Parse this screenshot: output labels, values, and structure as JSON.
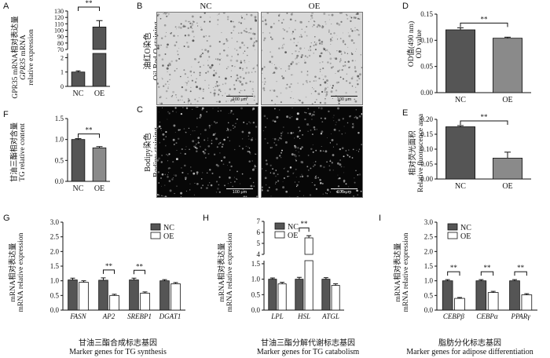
{
  "panels": {
    "A": {
      "label": "A",
      "ylabel_cn": "GPR35 mRNA相对表达量",
      "ylabel_en_gene": "GPR35",
      "ylabel_en_rest": " mRNA",
      "ylabel_en2": "relative expression"
    },
    "B": {
      "label": "B",
      "col_nc": "NC",
      "col_oe": "OE",
      "side_cn": "油红O染色",
      "side_en": "Oil Red O staining",
      "scale": "100 μm"
    },
    "C": {
      "label": "C",
      "side_cn": "Bodipy染色",
      "side_en": "Bodipy staining",
      "scale": "100 μm"
    },
    "D": {
      "label": "D",
      "ylabel_cn": "OD值(490 nm)",
      "ylabel_en": "OD value"
    },
    "E": {
      "label": "E",
      "ylabel_cn": "相对荧光面积",
      "ylabel_en": "Relative fluorescence area"
    },
    "F": {
      "label": "F",
      "ylabel_cn": "甘油三酯相对含量",
      "ylabel_en": "TG relative content"
    },
    "G": {
      "label": "G",
      "ylabel_cn": "mRNA相对表达量",
      "ylabel_en": "mRNA relative expression",
      "cap_cn": "甘油三酯合成标志基因",
      "cap_en": "Marker genes for TG synthesis"
    },
    "H": {
      "label": "H",
      "ylabel_cn": "mRNA相对表达量",
      "ylabel_en": "mRNA relative expression",
      "cap_cn": "甘油三酯分解代谢标志基因",
      "cap_en": "Marker genes for  TG catabolism"
    },
    "I": {
      "label": "I",
      "ylabel_cn": "mRNA相对表达量",
      "ylabel_en": "mRNA relative expression",
      "cap_cn": "脂肪分化标志基因",
      "cap_en": "Marker genes for adipose differentiation"
    }
  },
  "colors": {
    "nc": "#555555",
    "oe_dark": "#8a8a8a",
    "oe_white": "#ffffff"
  },
  "chart_data": [
    {
      "id": "A",
      "type": "bar",
      "categories": [
        "NC",
        "OE"
      ],
      "values": [
        1.0,
        105
      ],
      "errors": [
        0.08,
        10
      ],
      "yaxis_break": true,
      "lower_ticks": [
        "0",
        "1",
        "2"
      ],
      "upper_ticks": [
        "70",
        "80",
        "90",
        "100",
        "110",
        "120",
        "130"
      ],
      "ylim_lower": [
        0,
        2.3
      ],
      "ylim_upper": [
        70,
        130
      ],
      "significance": "**"
    },
    {
      "id": "D",
      "type": "bar",
      "categories": [
        "NC",
        "OE"
      ],
      "values": [
        0.12,
        0.104
      ],
      "errors": [
        0.004,
        0.002
      ],
      "ylim": [
        0,
        0.15
      ],
      "ticks": [
        "0.00",
        "0.05",
        "0.10",
        "0.15"
      ],
      "tickvals": [
        0,
        0.05,
        0.1,
        0.15
      ],
      "significance": "**"
    },
    {
      "id": "E",
      "type": "bar",
      "categories": [
        "NC",
        "OE"
      ],
      "values": [
        0.175,
        0.07
      ],
      "errors": [
        0.004,
        0.02
      ],
      "ylim": [
        0,
        0.2
      ],
      "ticks": [
        "0.00",
        "0.05",
        "0.10",
        "0.15",
        "0.20"
      ],
      "tickvals": [
        0,
        0.05,
        0.1,
        0.15,
        0.2
      ],
      "significance": "**"
    },
    {
      "id": "F",
      "type": "bar",
      "categories": [
        "NC",
        "OE"
      ],
      "values": [
        1.0,
        0.8
      ],
      "errors": [
        0.02,
        0.03
      ],
      "ylim": [
        0,
        1.5
      ],
      "ticks": [
        "0.0",
        "0.5",
        "1.0",
        "1.5"
      ],
      "tickvals": [
        0,
        0.5,
        1.0,
        1.5
      ],
      "significance": "**"
    },
    {
      "id": "G",
      "type": "bar",
      "categories": [
        "FASN",
        "AP2",
        "SREBP1",
        "DGAT1"
      ],
      "series": [
        {
          "name": "NC",
          "values": [
            1.03,
            1.02,
            1.03,
            1.0
          ],
          "errors": [
            0.06,
            0.08,
            0.06,
            0.04
          ]
        },
        {
          "name": "OE",
          "values": [
            0.95,
            0.5,
            0.58,
            0.9
          ],
          "errors": [
            0.05,
            0.04,
            0.04,
            0.04
          ]
        }
      ],
      "ylim": [
        0,
        3.0
      ],
      "ticks": [
        "0.0",
        "0.5",
        "1.0",
        "1.5",
        "2.0",
        "2.5",
        "3.0"
      ],
      "tickvals": [
        0,
        0.5,
        1,
        1.5,
        2,
        2.5,
        3
      ],
      "significance": [
        "",
        "**",
        "**",
        ""
      ],
      "legend": "top-right"
    },
    {
      "id": "H",
      "type": "bar",
      "categories": [
        "LPL",
        "HSL",
        "ATGL"
      ],
      "series": [
        {
          "name": "NC",
          "values": [
            1.0,
            1.0,
            1.0
          ],
          "errors": [
            0.04,
            0.06,
            0.05
          ]
        },
        {
          "name": "OE",
          "values": [
            0.85,
            5.5,
            0.8
          ],
          "errors": [
            0.05,
            0.2,
            0.05
          ]
        }
      ],
      "yaxis_break": true,
      "lower_ticks": [
        "0.0",
        "0.5",
        "1.0",
        "1.5"
      ],
      "upper_ticks": [
        "4",
        "5",
        "6",
        "7"
      ],
      "ylim_lower": [
        0,
        1.6
      ],
      "ylim_upper": [
        4,
        7
      ],
      "significance": [
        "",
        "**",
        ""
      ],
      "legend": "top-left"
    },
    {
      "id": "I",
      "type": "bar",
      "categories": [
        "CEBPβ",
        "CEBPα",
        "PPARγ"
      ],
      "series": [
        {
          "name": "NC",
          "values": [
            1.0,
            1.0,
            1.0
          ],
          "errors": [
            0.04,
            0.04,
            0.04
          ]
        },
        {
          "name": "OE",
          "values": [
            0.4,
            0.6,
            0.52
          ],
          "errors": [
            0.03,
            0.04,
            0.04
          ]
        }
      ],
      "ylim": [
        0,
        3.0
      ],
      "ticks": [
        "0.0",
        "0.5",
        "1.0",
        "1.5",
        "2.0",
        "2.5",
        "3.0"
      ],
      "tickvals": [
        0,
        0.5,
        1,
        1.5,
        2,
        2.5,
        3
      ],
      "significance": [
        "**",
        "**",
        "**"
      ],
      "legend": "top-left"
    }
  ]
}
